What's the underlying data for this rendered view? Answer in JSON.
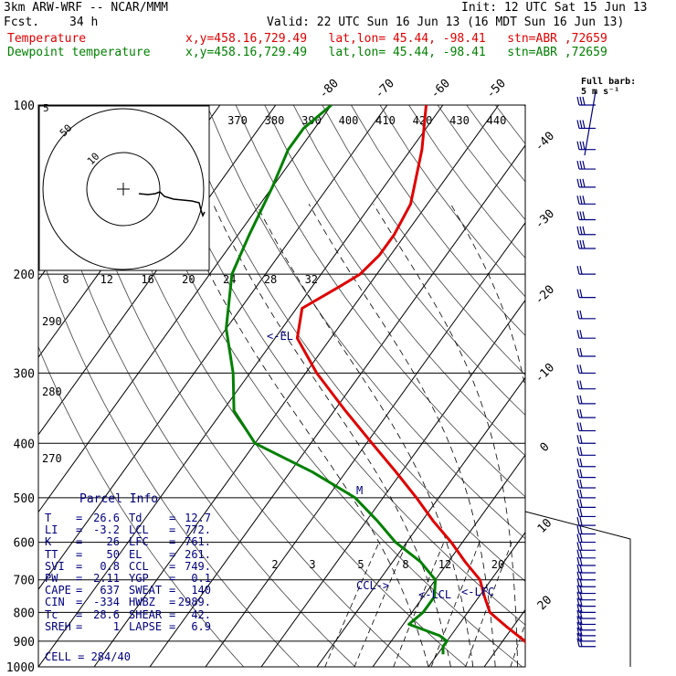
{
  "header": {
    "model": "3km ARW-WRF -- NCAR/MMM",
    "init": "Init: 12 UTC Sat 15 Jun 13",
    "fcst_label": "Fcst.",
    "fcst_value": "34 h",
    "valid": "Valid: 22 UTC Sun 16 Jun 13 (16 MDT Sun 16 Jun 13)",
    "temp_label": "Temperature",
    "dew_label": "Dewpoint temperature",
    "temp_info": "x,y=458.16,729.49   lat,lon= 45.44, -98.41   stn=ABR ,72659",
    "dew_info": "x,y=458.16,729.49   lat,lon= 45.44, -98.41   stn=ABR ,72659"
  },
  "colors": {
    "temperature": "#e00000",
    "dewpoint": "#008000",
    "parcel_text": "#000080",
    "grid": "#000000",
    "theta_lines": "#404040"
  },
  "chart_data": {
    "type": "line",
    "chart_kind": "skew-T log-p sounding",
    "pressure_axis": [
      "100",
      "200",
      "300",
      "400",
      "500",
      "600",
      "700",
      "800",
      "900",
      "1000"
    ],
    "pressure_ticks": [
      100,
      200,
      300,
      400,
      500,
      600,
      700,
      800,
      900,
      1000
    ],
    "temperature_ticks": [
      -80,
      -70,
      -60,
      -50,
      -40,
      -30,
      -20,
      -10,
      0,
      10,
      20,
      30,
      40
    ],
    "mixing_ratio_ticks": [
      "2",
      "3",
      "5",
      "8",
      "12",
      "20"
    ],
    "theta_e_ticks": [
      "370",
      "380",
      "390",
      "400",
      "410",
      "420",
      "430",
      "440"
    ],
    "theta_ticks": [
      "290",
      "280",
      "270"
    ],
    "hodograph_speed_ticks": [
      "8",
      "12",
      "16",
      "20",
      "24",
      "28",
      "32"
    ],
    "hodograph_units": "kts",
    "hodograph_ring_labels": [
      "5",
      "50",
      "10"
    ],
    "barb_legend": "Full barb:\n 5 m s⁻¹",
    "annotations": [
      "<-EL",
      "CCL->",
      "<-LCL",
      "<-LFC",
      "M"
    ],
    "series": [
      {
        "name": "Temperature",
        "color": "#e00000",
        "points": [
          [
            100,
            -63
          ],
          [
            120,
            -58
          ],
          [
            150,
            -53
          ],
          [
            170,
            -52
          ],
          [
            185,
            -52
          ],
          [
            200,
            -53
          ],
          [
            210,
            -55
          ],
          [
            230,
            -59
          ],
          [
            260,
            -56
          ],
          [
            300,
            -48
          ],
          [
            350,
            -38
          ],
          [
            400,
            -29
          ],
          [
            450,
            -21
          ],
          [
            500,
            -14
          ],
          [
            550,
            -8
          ],
          [
            600,
            -2
          ],
          [
            650,
            3
          ],
          [
            700,
            8
          ],
          [
            750,
            11
          ],
          [
            800,
            14
          ],
          [
            850,
            19
          ],
          [
            900,
            24
          ],
          [
            950,
            27
          ]
        ]
      },
      {
        "name": "Dewpoint temperature",
        "color": "#008000",
        "points": [
          [
            100,
            -80
          ],
          [
            110,
            -82
          ],
          [
            120,
            -82
          ],
          [
            140,
            -80
          ],
          [
            170,
            -78
          ],
          [
            200,
            -76
          ],
          [
            250,
            -70
          ],
          [
            300,
            -63
          ],
          [
            350,
            -58
          ],
          [
            400,
            -50
          ],
          [
            450,
            -36
          ],
          [
            500,
            -25
          ],
          [
            550,
            -18
          ],
          [
            600,
            -12
          ],
          [
            650,
            -5
          ],
          [
            700,
            0
          ],
          [
            750,
            2
          ],
          [
            780,
            2
          ],
          [
            800,
            2
          ],
          [
            840,
            1
          ],
          [
            880,
            8
          ],
          [
            900,
            10
          ],
          [
            920,
            10
          ],
          [
            950,
            11
          ]
        ]
      }
    ],
    "wind_barbs": [
      [
        100,
        "W",
        25
      ],
      [
        110,
        "W",
        25
      ],
      [
        120,
        "W",
        25
      ],
      [
        130,
        "W",
        25
      ],
      [
        140,
        "W",
        25
      ],
      [
        150,
        "W",
        25
      ],
      [
        160,
        "W",
        25
      ],
      [
        170,
        "W",
        25
      ],
      [
        180,
        "W",
        25
      ],
      [
        200,
        "W",
        15
      ],
      [
        220,
        "W",
        15
      ],
      [
        240,
        "W",
        15
      ],
      [
        260,
        "W",
        15
      ],
      [
        280,
        "W",
        15
      ],
      [
        300,
        "W",
        15
      ],
      [
        320,
        "W",
        15
      ],
      [
        340,
        "W",
        15
      ],
      [
        360,
        "W",
        15
      ],
      [
        380,
        "W",
        15
      ],
      [
        400,
        "W",
        15
      ],
      [
        420,
        "W",
        15
      ],
      [
        440,
        "W",
        15
      ],
      [
        460,
        "W",
        15
      ],
      [
        480,
        "W",
        15
      ],
      [
        500,
        "W",
        15
      ],
      [
        520,
        "W",
        15
      ],
      [
        540,
        "W",
        15
      ],
      [
        560,
        "W",
        15
      ],
      [
        580,
        "W",
        15
      ],
      [
        600,
        "W",
        15
      ],
      [
        620,
        "W",
        15
      ],
      [
        640,
        "W",
        15
      ],
      [
        660,
        "W",
        15
      ],
      [
        680,
        "W",
        15
      ],
      [
        700,
        "W",
        15
      ],
      [
        720,
        "W",
        15
      ],
      [
        740,
        "W",
        15
      ],
      [
        760,
        "W",
        15
      ],
      [
        780,
        "W",
        15
      ],
      [
        800,
        "W",
        15
      ],
      [
        820,
        "W",
        15
      ],
      [
        840,
        "W",
        15
      ],
      [
        860,
        "W",
        15
      ],
      [
        880,
        "W",
        15
      ],
      [
        900,
        "W",
        15
      ],
      [
        920,
        "W",
        15
      ]
    ]
  },
  "parcel_info": {
    "title": "Parcel Info",
    "rows": [
      [
        "T",
        "=",
        "26.6",
        "Td",
        "=",
        "12.7"
      ],
      [
        "LI",
        "=",
        "-3.2",
        "LCL",
        "=",
        "772."
      ],
      [
        "K",
        "=",
        "26",
        "LFC",
        "=",
        "761."
      ],
      [
        "TT",
        "=",
        "50",
        "EL",
        "=",
        "261."
      ],
      [
        "SVI",
        "=",
        "0.8",
        "CCL",
        "=",
        "749."
      ],
      [
        "PW",
        "=",
        "2.11",
        "YGP",
        "=",
        "0.1"
      ],
      [
        "CAPE",
        "=",
        "637",
        "SWEAT",
        "=",
        "140"
      ],
      [
        "CIN",
        "=",
        "-334",
        "HWBZ",
        "=",
        "2989."
      ],
      [
        "Tc",
        "=",
        "28.6",
        "SHEAR",
        "=",
        "42."
      ],
      [
        "SREH",
        "=",
        "1",
        "LAPSE",
        "=",
        "6.9"
      ]
    ],
    "cell": "CELL = 284/40"
  }
}
